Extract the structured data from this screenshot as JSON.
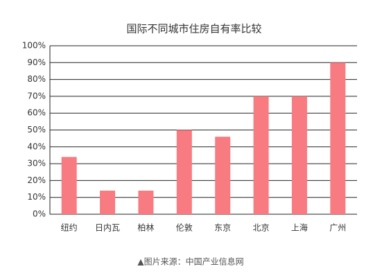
{
  "chart_data": {
    "type": "bar",
    "title": "国际不同城市住房自有率比较",
    "categories": [
      "纽约",
      "日内瓦",
      "柏林",
      "伦敦",
      "东京",
      "北京",
      "上海",
      "广州"
    ],
    "values": [
      34,
      14,
      14,
      50,
      46,
      70,
      70,
      90
    ],
    "color": "#f77b80",
    "ylim": [
      0,
      100
    ],
    "yticks": [
      {
        "value": 0,
        "label": "0%"
      },
      {
        "value": 10,
        "label": "10%"
      },
      {
        "value": 20,
        "label": "20%"
      },
      {
        "value": 30,
        "label": "30%"
      },
      {
        "value": 40,
        "label": "40%"
      },
      {
        "value": 50,
        "label": "50%"
      },
      {
        "value": 60,
        "label": "60%"
      },
      {
        "value": 70,
        "label": "70%"
      },
      {
        "value": 80,
        "label": "80%"
      },
      {
        "value": 90,
        "label": "90%"
      },
      {
        "value": 100,
        "label": "100%"
      }
    ],
    "grid": true,
    "caption": "▲图片来源：中国产业信息网"
  }
}
